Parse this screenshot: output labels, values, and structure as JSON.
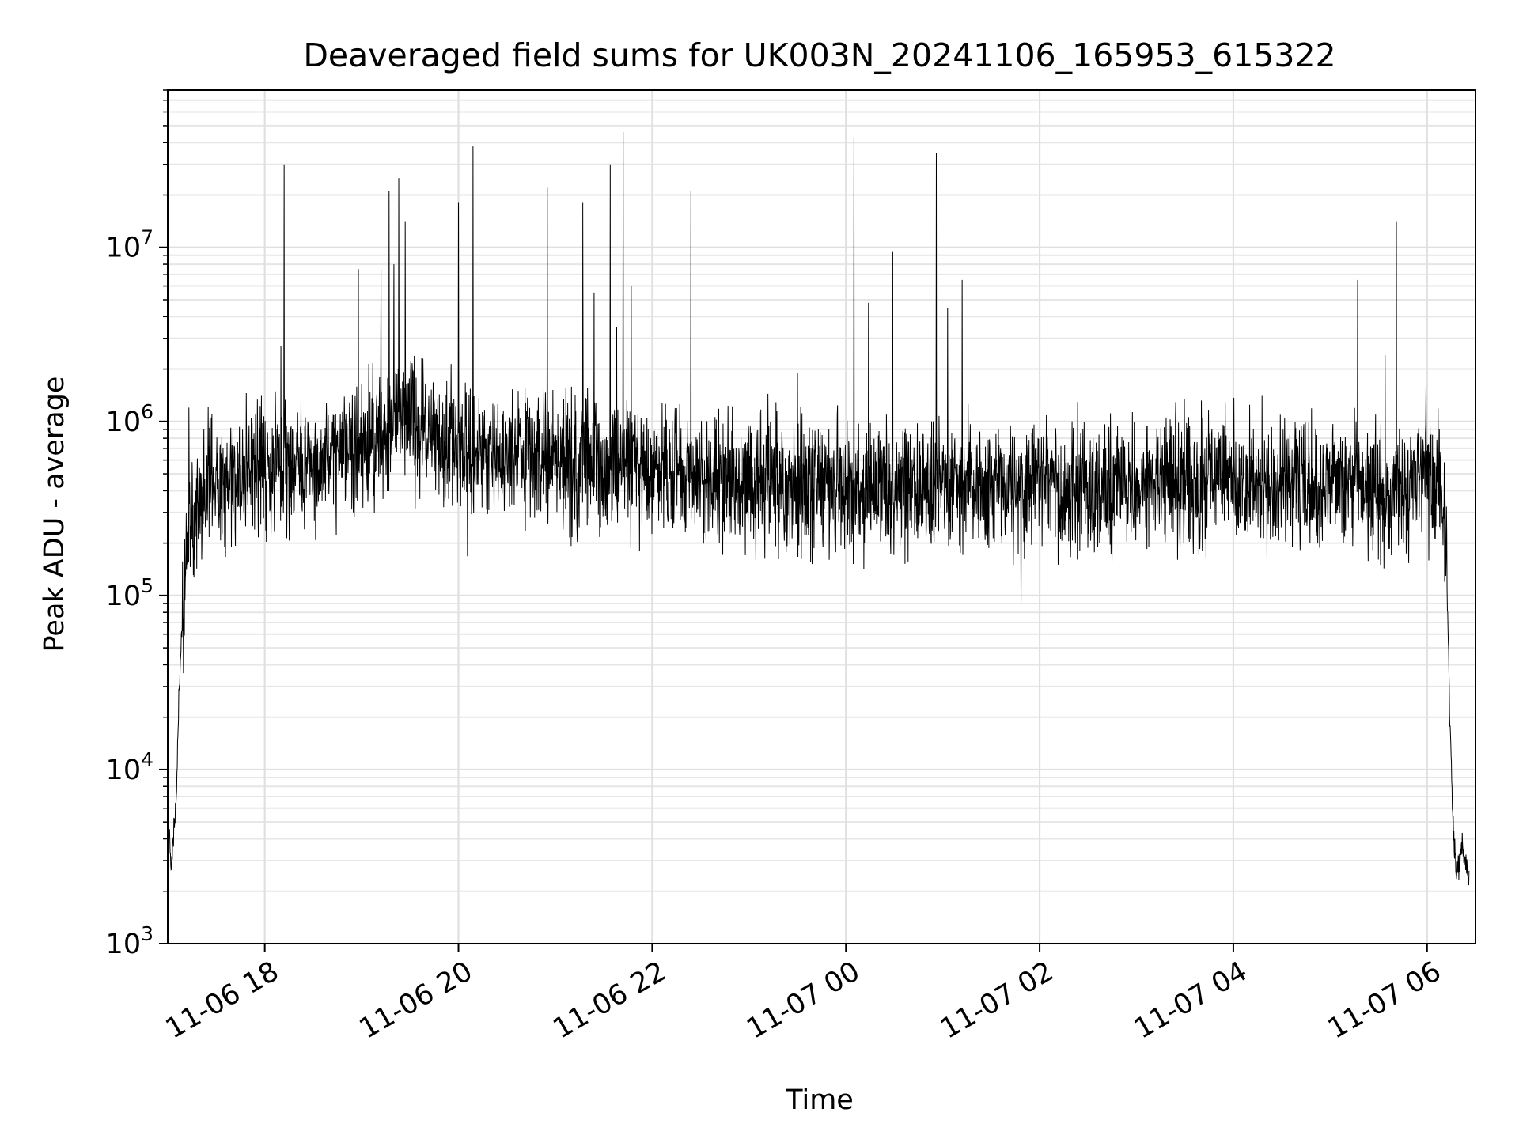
{
  "chart_data": {
    "type": "line",
    "title": "Deaveraged field sums for UK003N_20241106_165953_615322",
    "xlabel": "Time",
    "ylabel": "Peak ADU - average",
    "yscale": "log",
    "ylim": [
      1000,
      80000000
    ],
    "xlim": [
      "2024-11-06T16:59:53",
      "2024-11-07T06:30:00"
    ],
    "grid": {
      "major": true,
      "minor_y": true
    },
    "x_ticks": [
      {
        "t": "2024-11-06T18:00",
        "label": "11-06 18"
      },
      {
        "t": "2024-11-06T20:00",
        "label": "11-06 20"
      },
      {
        "t": "2024-11-06T22:00",
        "label": "11-06 22"
      },
      {
        "t": "2024-11-07T00:00",
        "label": "11-07 00"
      },
      {
        "t": "2024-11-07T02:00",
        "label": "11-07 02"
      },
      {
        "t": "2024-11-07T04:00",
        "label": "11-07 04"
      },
      {
        "t": "2024-11-07T06:00",
        "label": "11-07 06"
      }
    ],
    "y_ticks": [
      {
        "value": 1000,
        "base": "10",
        "exp": "3"
      },
      {
        "value": 10000,
        "base": "10",
        "exp": "4"
      },
      {
        "value": 100000,
        "base": "10",
        "exp": "5"
      },
      {
        "value": 1000000,
        "base": "10",
        "exp": "6"
      },
      {
        "value": 10000000,
        "base": "10",
        "exp": "7"
      }
    ],
    "series": [
      {
        "color": "#000000",
        "line_width": 1,
        "points": [
          {
            "t": "2024-11-06T17:01",
            "v": 4500
          },
          {
            "t": "2024-11-06T17:02",
            "v": 2500
          },
          {
            "t": "2024-11-06T17:03",
            "v": 3500
          },
          {
            "t": "2024-11-06T17:05",
            "v": 6000
          },
          {
            "t": "2024-11-06T17:07",
            "v": 30000
          },
          {
            "t": "2024-11-06T17:09",
            "v": 80000
          },
          {
            "t": "2024-11-06T17:11",
            "v": 150000
          },
          {
            "t": "2024-11-06T17:13",
            "v": 250000
          },
          {
            "t": "2024-11-06T17:20",
            "v": 350000
          },
          {
            "t": "2024-11-06T17:30",
            "v": 450000
          },
          {
            "t": "2024-11-06T17:45",
            "v": 500000
          },
          {
            "t": "2024-11-06T18:00",
            "v": 550000
          },
          {
            "t": "2024-11-06T18:30",
            "v": 600000
          },
          {
            "t": "2024-11-06T19:00",
            "v": 700000
          },
          {
            "t": "2024-11-06T19:30",
            "v": 1100000
          },
          {
            "t": "2024-11-06T19:45",
            "v": 800000
          },
          {
            "t": "2024-11-06T20:00",
            "v": 750000
          },
          {
            "t": "2024-11-06T20:30",
            "v": 700000
          },
          {
            "t": "2024-11-06T21:00",
            "v": 600000
          },
          {
            "t": "2024-11-06T21:30",
            "v": 550000
          },
          {
            "t": "2024-11-06T22:00",
            "v": 500000
          },
          {
            "t": "2024-11-06T23:00",
            "v": 450000
          },
          {
            "t": "2024-11-07T00:00",
            "v": 420000
          },
          {
            "t": "2024-11-07T01:00",
            "v": 430000
          },
          {
            "t": "2024-11-07T02:00",
            "v": 420000
          },
          {
            "t": "2024-11-07T03:00",
            "v": 420000
          },
          {
            "t": "2024-11-07T04:00",
            "v": 480000
          },
          {
            "t": "2024-11-07T05:00",
            "v": 430000
          },
          {
            "t": "2024-11-07T05:45",
            "v": 420000
          },
          {
            "t": "2024-11-07T06:00",
            "v": 500000
          },
          {
            "t": "2024-11-07T06:09",
            "v": 450000
          },
          {
            "t": "2024-11-07T06:12",
            "v": 200000
          },
          {
            "t": "2024-11-07T06:14",
            "v": 20000
          },
          {
            "t": "2024-11-07T06:16",
            "v": 5000
          },
          {
            "t": "2024-11-07T06:18",
            "v": 2500
          },
          {
            "t": "2024-11-07T06:22",
            "v": 3500
          },
          {
            "t": "2024-11-07T06:26",
            "v": 2500
          }
        ],
        "spikes": [
          {
            "t": "2024-11-06T17:13",
            "v": 1200000
          },
          {
            "t": "2024-11-06T18:12",
            "v": 30000000
          },
          {
            "t": "2024-11-06T18:10",
            "v": 2700000
          },
          {
            "t": "2024-11-06T18:58",
            "v": 7500000
          },
          {
            "t": "2024-11-06T19:12",
            "v": 7500000
          },
          {
            "t": "2024-11-06T19:17",
            "v": 21000000
          },
          {
            "t": "2024-11-06T19:20",
            "v": 8000000
          },
          {
            "t": "2024-11-06T19:23",
            "v": 25000000
          },
          {
            "t": "2024-11-06T19:27",
            "v": 14000000
          },
          {
            "t": "2024-11-06T20:00",
            "v": 18000000
          },
          {
            "t": "2024-11-06T20:09",
            "v": 38000000
          },
          {
            "t": "2024-11-06T20:55",
            "v": 22000000
          },
          {
            "t": "2024-11-06T21:17",
            "v": 18000000
          },
          {
            "t": "2024-11-06T21:24",
            "v": 5500000
          },
          {
            "t": "2024-11-06T21:34",
            "v": 30000000
          },
          {
            "t": "2024-11-06T21:38",
            "v": 3500000
          },
          {
            "t": "2024-11-06T21:42",
            "v": 46000000
          },
          {
            "t": "2024-11-06T21:47",
            "v": 6000000
          },
          {
            "t": "2024-11-06T22:24",
            "v": 21000000
          },
          {
            "t": "2024-11-06T23:30",
            "v": 1900000
          },
          {
            "t": "2024-11-07T00:05",
            "v": 43000000
          },
          {
            "t": "2024-11-07T00:14",
            "v": 4800000
          },
          {
            "t": "2024-11-07T00:29",
            "v": 9500000
          },
          {
            "t": "2024-11-07T00:56",
            "v": 35000000
          },
          {
            "t": "2024-11-07T01:03",
            "v": 4500000
          },
          {
            "t": "2024-11-07T01:12",
            "v": 6500000
          },
          {
            "t": "2024-11-07T05:17",
            "v": 6500000
          },
          {
            "t": "2024-11-07T05:34",
            "v": 2400000
          },
          {
            "t": "2024-11-07T05:41",
            "v": 14000000
          }
        ],
        "noise_spread_decades": 0.55
      }
    ]
  }
}
